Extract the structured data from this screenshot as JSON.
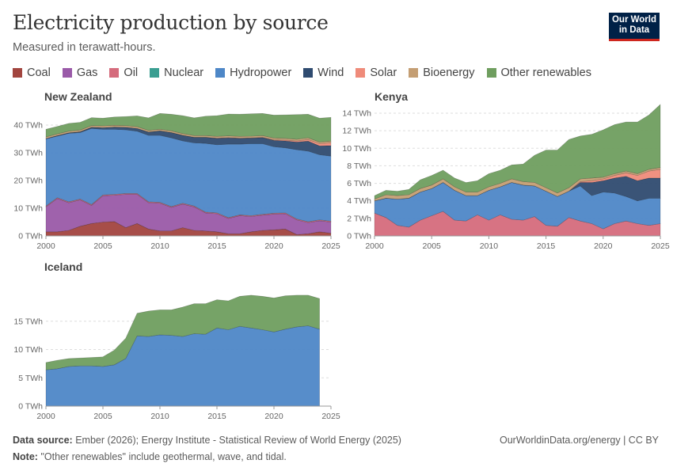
{
  "header": {
    "title": "Electricity production by source",
    "subtitle": "Measured in terawatt-hours.",
    "logo_line1": "Our World",
    "logo_line2": "in Data"
  },
  "footer": {
    "source_label": "Data source:",
    "source_text": "Ember (2026); Energy Institute - Statistical Review of World Energy (2025)",
    "note_label": "Note:",
    "note_text": "\"Other renewables\" include geothermal, wave, and tidal.",
    "link": "OurWorldinData.org/energy | CC BY"
  },
  "chart_data": {
    "type": "area",
    "stacked": true,
    "sources": [
      {
        "name": "Coal",
        "color": "#a2453f"
      },
      {
        "name": "Gas",
        "color": "#9a5aa8"
      },
      {
        "name": "Oil",
        "color": "#d56b7c"
      },
      {
        "name": "Nuclear",
        "color": "#3a9e91"
      },
      {
        "name": "Hydropower",
        "color": "#4e87c7"
      },
      {
        "name": "Wind",
        "color": "#2f4b70"
      },
      {
        "name": "Solar",
        "color": "#ef8b7a"
      },
      {
        "name": "Bioenergy",
        "color": "#c49e73"
      },
      {
        "name": "Other renewables",
        "color": "#6f9e5f"
      }
    ],
    "x_ticks": [
      2000,
      2005,
      2010,
      2015,
      2020,
      2025
    ],
    "panels": [
      {
        "name": "New Zealand",
        "x": [
          2000,
          2001,
          2002,
          2003,
          2004,
          2005,
          2006,
          2007,
          2008,
          2009,
          2010,
          2011,
          2012,
          2013,
          2014,
          2015,
          2016,
          2017,
          2018,
          2019,
          2020,
          2021,
          2022,
          2023,
          2024,
          2025
        ],
        "ylim": [
          0,
          40
        ],
        "y_ticks": [
          0,
          10,
          20,
          30,
          40
        ],
        "y_tick_labels": [
          "0 TWh",
          "10 TWh",
          "20 TWh",
          "30 TWh",
          "40 TWh"
        ],
        "series": [
          {
            "name": "Coal",
            "values": [
              1.5,
              1.5,
              2.0,
              3.5,
              4.5,
              5.0,
              5.2,
              3.0,
              4.5,
              2.5,
              1.8,
              1.8,
              3.0,
              2.0,
              1.8,
              1.5,
              0.8,
              0.8,
              1.5,
              2.0,
              2.2,
              2.5,
              0.5,
              0.8,
              1.5,
              1.0
            ]
          },
          {
            "name": "Gas",
            "values": [
              9.0,
              12.0,
              10.0,
              9.5,
              6.5,
              9.5,
              9.5,
              12.0,
              10.5,
              9.5,
              10.0,
              8.5,
              8.5,
              8.5,
              6.5,
              6.5,
              5.5,
              6.5,
              5.5,
              5.5,
              5.7,
              5.5,
              5.3,
              4.0,
              4.0,
              4.0
            ]
          },
          {
            "name": "Oil",
            "values": [
              0.3,
              0.3,
              0.3,
              0.3,
              0.3,
              0.3,
              0.3,
              0.3,
              0.3,
              0.3,
              0.3,
              0.3,
              0.3,
              0.3,
              0.3,
              0.3,
              0.3,
              0.3,
              0.3,
              0.3,
              0.3,
              0.3,
              0.3,
              0.3,
              0.3,
              0.3
            ]
          },
          {
            "name": "Nuclear",
            "values": [
              0,
              0,
              0,
              0,
              0,
              0,
              0,
              0,
              0,
              0,
              0,
              0,
              0,
              0,
              0,
              0,
              0,
              0,
              0,
              0,
              0,
              0,
              0,
              0,
              0,
              0
            ]
          },
          {
            "name": "Hydropower",
            "values": [
              24.2,
              22.2,
              24.7,
              24.0,
              27.5,
              23.7,
              23.5,
              23.0,
              22.5,
              24.0,
              24.2,
              24.8,
              22.5,
              22.8,
              24.8,
              24.6,
              26.5,
              25.5,
              26.0,
              25.5,
              24.0,
              23.5,
              25.0,
              25.5,
              23.5,
              23.5
            ]
          },
          {
            "name": "Wind",
            "values": [
              0.1,
              0.2,
              0.2,
              0.3,
              0.4,
              0.6,
              0.8,
              0.9,
              1.0,
              1.2,
              1.6,
              1.9,
              2.0,
              2.0,
              2.2,
              2.3,
              2.3,
              2.1,
              2.0,
              2.2,
              2.3,
              2.5,
              2.8,
              3.6,
              3.2,
              3.8
            ]
          },
          {
            "name": "Solar",
            "values": [
              0,
              0,
              0,
              0,
              0,
              0,
              0,
              0,
              0,
              0,
              0,
              0,
              0,
              0,
              0,
              0.1,
              0.1,
              0.1,
              0.1,
              0.1,
              0.2,
              0.3,
              0.4,
              0.6,
              0.8,
              1.0
            ]
          },
          {
            "name": "Bioenergy",
            "values": [
              0.6,
              0.6,
              0.6,
              0.6,
              0.6,
              0.6,
              0.6,
              0.6,
              0.6,
              0.6,
              0.6,
              0.6,
              0.6,
              0.6,
              0.6,
              0.6,
              0.6,
              0.6,
              0.6,
              0.6,
              0.6,
              0.6,
              0.6,
              0.6,
              0.6,
              0.6
            ]
          },
          {
            "name": "Other renewables",
            "values": [
              2.8,
              2.7,
              2.8,
              2.8,
              2.9,
              2.8,
              3.0,
              3.3,
              3.9,
              4.5,
              5.7,
              6.0,
              6.5,
              6.4,
              7.0,
              7.5,
              7.9,
              8.0,
              8.1,
              8.0,
              8.3,
              8.5,
              8.9,
              8.5,
              8.6,
              8.6
            ]
          }
        ]
      },
      {
        "name": "Kenya",
        "x": [
          2000,
          2001,
          2002,
          2003,
          2004,
          2005,
          2006,
          2007,
          2008,
          2009,
          2010,
          2011,
          2012,
          2013,
          2014,
          2015,
          2016,
          2017,
          2018,
          2019,
          2020,
          2021,
          2022,
          2023,
          2024,
          2025
        ],
        "ylim": [
          0,
          14
        ],
        "y_ticks": [
          0,
          2,
          4,
          6,
          8,
          10,
          12,
          14
        ],
        "y_tick_labels": [
          "0 TWh",
          "2 TWh",
          "4 TWh",
          "6 TWh",
          "8 TWh",
          "10 TWh",
          "12 TWh",
          "14 TWh"
        ],
        "series": [
          {
            "name": "Coal",
            "values": [
              0,
              0,
              0,
              0,
              0,
              0,
              0,
              0,
              0,
              0,
              0,
              0,
              0,
              0,
              0,
              0,
              0,
              0,
              0,
              0,
              0,
              0,
              0,
              0,
              0,
              0
            ]
          },
          {
            "name": "Gas",
            "values": [
              0,
              0,
              0,
              0,
              0,
              0,
              0,
              0,
              0,
              0,
              0,
              0,
              0,
              0,
              0,
              0,
              0,
              0,
              0,
              0,
              0,
              0,
              0,
              0,
              0,
              0
            ]
          },
          {
            "name": "Oil",
            "values": [
              2.6,
              2.1,
              1.2,
              1.0,
              1.8,
              2.3,
              2.8,
              1.8,
              1.7,
              2.4,
              1.8,
              2.4,
              1.9,
              1.8,
              2.2,
              1.2,
              1.1,
              2.1,
              1.7,
              1.4,
              0.8,
              1.4,
              1.7,
              1.4,
              1.2,
              1.4
            ]
          },
          {
            "name": "Nuclear",
            "values": [
              0,
              0,
              0,
              0,
              0,
              0,
              0,
              0,
              0,
              0,
              0,
              0,
              0,
              0,
              0,
              0,
              0,
              0,
              0,
              0,
              0,
              0,
              0,
              0,
              0,
              0
            ]
          },
          {
            "name": "Hydropower",
            "values": [
              1.4,
              2.2,
              3.0,
              3.3,
              3.2,
              3.1,
              3.3,
              3.4,
              2.9,
              2.2,
              3.4,
              3.2,
              4.2,
              4.0,
              3.5,
              3.9,
              3.4,
              3.0,
              4.0,
              3.2,
              4.2,
              3.5,
              2.8,
              2.6,
              3.1,
              2.9
            ]
          },
          {
            "name": "Wind",
            "values": [
              0,
              0,
              0,
              0,
              0,
              0,
              0,
              0,
              0,
              0,
              0,
              0,
              0,
              0,
              0,
              0,
              0,
              0,
              0.4,
              1.5,
              1.3,
              1.7,
              2.3,
              2.3,
              2.3,
              2.3
            ]
          },
          {
            "name": "Solar",
            "values": [
              0,
              0,
              0,
              0,
              0,
              0,
              0,
              0,
              0,
              0,
              0,
              0,
              0,
              0,
              0,
              0,
              0,
              0,
              0.1,
              0.2,
              0.2,
              0.3,
              0.4,
              0.6,
              0.8,
              1.0
            ]
          },
          {
            "name": "Bioenergy",
            "values": [
              0.2,
              0.4,
              0.4,
              0.4,
              0.4,
              0.4,
              0.4,
              0.4,
              0.4,
              0.4,
              0.4,
              0.4,
              0.4,
              0.4,
              0.4,
              0.4,
              0.4,
              0.4,
              0.3,
              0.3,
              0.2,
              0.2,
              0.2,
              0.2,
              0.2,
              0.2
            ]
          },
          {
            "name": "Other renewables",
            "values": [
              0.4,
              0.5,
              0.5,
              0.6,
              1.0,
              1.1,
              1.0,
              1.0,
              1.1,
              1.3,
              1.5,
              1.5,
              1.6,
              2.0,
              3.1,
              4.3,
              4.9,
              5.5,
              4.9,
              5.0,
              5.4,
              5.6,
              5.6,
              5.9,
              6.2,
              7.2
            ]
          }
        ]
      },
      {
        "name": "Iceland",
        "x": [
          2000,
          2001,
          2002,
          2003,
          2004,
          2005,
          2006,
          2007,
          2008,
          2009,
          2010,
          2011,
          2012,
          2013,
          2014,
          2015,
          2016,
          2017,
          2018,
          2019,
          2020,
          2021,
          2022,
          2023,
          2024
        ],
        "ylim": [
          0,
          20
        ],
        "y_ticks": [
          0,
          5,
          10,
          15
        ],
        "y_tick_labels": [
          "0 TWh",
          "5 TWh",
          "10 TWh",
          "15 TWh"
        ],
        "series": [
          {
            "name": "Coal",
            "values": [
              0,
              0,
              0,
              0,
              0,
              0,
              0,
              0,
              0,
              0,
              0,
              0,
              0,
              0,
              0,
              0,
              0,
              0,
              0,
              0,
              0,
              0,
              0,
              0,
              0
            ]
          },
          {
            "name": "Gas",
            "values": [
              0,
              0,
              0,
              0,
              0,
              0,
              0,
              0,
              0,
              0,
              0,
              0,
              0,
              0,
              0,
              0,
              0,
              0,
              0,
              0,
              0,
              0,
              0,
              0,
              0
            ]
          },
          {
            "name": "Oil",
            "values": [
              0,
              0,
              0,
              0,
              0,
              0,
              0,
              0,
              0,
              0,
              0,
              0,
              0,
              0,
              0,
              0,
              0,
              0,
              0,
              0,
              0,
              0,
              0,
              0,
              0
            ]
          },
          {
            "name": "Nuclear",
            "values": [
              0,
              0,
              0,
              0,
              0,
              0,
              0,
              0,
              0,
              0,
              0,
              0,
              0,
              0,
              0,
              0,
              0,
              0,
              0,
              0,
              0,
              0,
              0,
              0,
              0
            ]
          },
          {
            "name": "Hydropower",
            "values": [
              6.4,
              6.6,
              7.0,
              7.1,
              7.1,
              7.0,
              7.3,
              8.4,
              12.4,
              12.3,
              12.6,
              12.5,
              12.3,
              12.8,
              12.7,
              13.8,
              13.5,
              14.1,
              13.8,
              13.5,
              13.1,
              13.6,
              14.0,
              14.2,
              13.6
            ]
          },
          {
            "name": "Wind",
            "values": [
              0,
              0,
              0,
              0,
              0,
              0,
              0,
              0,
              0,
              0,
              0,
              0,
              0,
              0,
              0,
              0,
              0,
              0,
              0,
              0,
              0,
              0,
              0,
              0,
              0
            ]
          },
          {
            "name": "Solar",
            "values": [
              0,
              0,
              0,
              0,
              0,
              0,
              0,
              0,
              0,
              0,
              0,
              0,
              0,
              0,
              0,
              0,
              0,
              0,
              0,
              0,
              0,
              0,
              0,
              0,
              0
            ]
          },
          {
            "name": "Bioenergy",
            "values": [
              0,
              0,
              0,
              0,
              0,
              0,
              0,
              0,
              0,
              0,
              0,
              0,
              0,
              0,
              0,
              0,
              0,
              0,
              0,
              0,
              0,
              0,
              0,
              0,
              0
            ]
          },
          {
            "name": "Other renewables",
            "values": [
              1.3,
              1.5,
              1.4,
              1.4,
              1.5,
              1.7,
              2.6,
              3.6,
              4.0,
              4.5,
              4.4,
              4.5,
              5.2,
              5.3,
              5.4,
              5.0,
              5.1,
              5.3,
              5.8,
              5.9,
              6.0,
              5.9,
              5.6,
              5.4,
              5.4
            ]
          }
        ]
      }
    ]
  }
}
